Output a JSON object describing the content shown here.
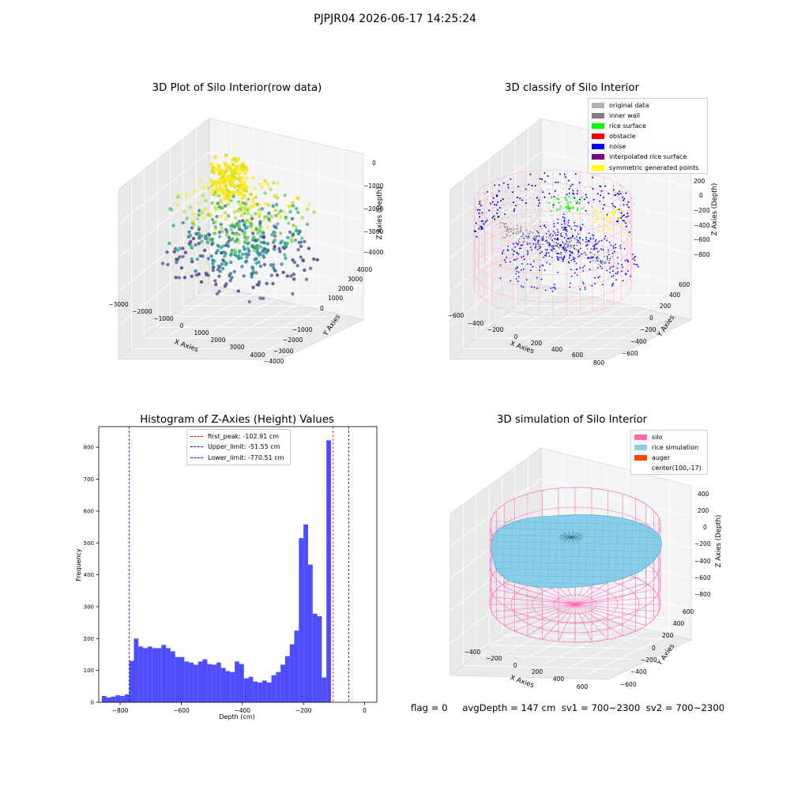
{
  "suptitle": "PJPJR04 2026-06-17 14:25:24",
  "footer": {
    "flag": "flag = 0",
    "avg": "avgDepth = 147 cm",
    "sv1": "sv1 = 700~2300",
    "sv2": "sv2 = 700~2300"
  },
  "chart_data": [
    {
      "type": "scatter",
      "projection": "3d",
      "title": "3D Plot of Silo Interior(row data)",
      "xlabel": "X Axies",
      "ylabel": "Y Axies",
      "zlabel": "Z Axies (Depth)",
      "xticks": [
        "−3000",
        "−2000",
        "−1000",
        "0",
        "1000",
        "2000",
        "3000",
        "4000"
      ],
      "yticks": [
        "−4000",
        "−3000",
        "−2000",
        "−1000",
        "0",
        "1000",
        "2000",
        "3000",
        "4000"
      ],
      "zticks": [
        "0",
        "−1000",
        "−2000",
        "−3000",
        "−4000"
      ],
      "xlim": [
        -3000,
        4000
      ],
      "ylim": [
        -4000,
        4000
      ],
      "zlim": [
        -4000,
        0
      ],
      "colormap": "viridis (colored by depth)",
      "grid": true
    },
    {
      "type": "scatter",
      "projection": "3d",
      "title": "3D classify of Silo Interior",
      "xlabel": "X Axies",
      "ylabel": "Y Axies",
      "zlabel": "Z Axies (Depth)",
      "xticks": [
        "−600",
        "−400",
        "−200",
        "0",
        "200",
        "400",
        "600",
        "800"
      ],
      "yticks": [
        "−600",
        "−400",
        "−200",
        "0",
        "200",
        "400",
        "600"
      ],
      "zticks": [
        "200",
        "0",
        "−200",
        "−400",
        "−600",
        "−800"
      ],
      "legend": [
        {
          "label": "original data",
          "color": "#b0b0b0"
        },
        {
          "label": "inner wall",
          "color": "#808080"
        },
        {
          "label": "rice surface",
          "color": "#00ff00"
        },
        {
          "label": "obstacle",
          "color": "#ff0000"
        },
        {
          "label": "noise",
          "color": "#0000ff"
        },
        {
          "label": "interpolated rice surface",
          "color": "#800080"
        },
        {
          "label": "symmetric generated points",
          "color": "#ffff00"
        }
      ],
      "legend_loc": "upper right",
      "grid": true
    },
    {
      "type": "bar",
      "subtype": "histogram",
      "title": "Histogram of Z-Axies (Height) Values",
      "xlabel": "Depth (cm)",
      "ylabel": "Frequency",
      "bar_color": "#4d4dff",
      "bin_width": 15,
      "bin_start": -860,
      "values": [
        20,
        15,
        18,
        22,
        20,
        25,
        130,
        200,
        175,
        170,
        175,
        170,
        170,
        180,
        170,
        160,
        142,
        142,
        128,
        125,
        118,
        128,
        135,
        120,
        118,
        125,
        108,
        98,
        95,
        128,
        120,
        75,
        80,
        65,
        62,
        68,
        62,
        85,
        95,
        118,
        145,
        182,
        225,
        515,
        558,
        432,
        278,
        270,
        78,
        822
      ],
      "xlim": [
        -870,
        40
      ],
      "ylim": [
        0,
        865
      ],
      "xticks": [
        -800,
        -600,
        -400,
        -200,
        0
      ],
      "yticks": [
        0,
        100,
        200,
        300,
        400,
        500,
        600,
        700,
        800
      ],
      "vlines": [
        {
          "label": "first_peak: -102.91 cm",
          "x": -102.91,
          "color": "#ff0000"
        },
        {
          "label": "Upper_limit: -51.55 cm",
          "x": -51.55,
          "color": "#0000a0"
        },
        {
          "label": "Lower_limit: -770.51 cm",
          "x": -770.51,
          "color": "#0000ff"
        }
      ],
      "legend_loc": "upper center"
    },
    {
      "type": "surface",
      "projection": "3d",
      "title": "3D simulation of Silo Interior",
      "xlabel": "X Axies",
      "ylabel": "Y Axies",
      "zlabel": "Z Axies (Depth)",
      "xticks": [
        "−400",
        "−200",
        "0",
        "200",
        "400",
        "600"
      ],
      "yticks": [
        "−600",
        "−400",
        "−200",
        "0",
        "200",
        "400",
        "600"
      ],
      "zticks": [
        "400",
        "200",
        "0",
        "−200",
        "−400",
        "−600",
        "−800"
      ],
      "legend": [
        {
          "label": "silo",
          "color": "#ff69b4"
        },
        {
          "label": "rice simulation",
          "color": "#87ceeb"
        },
        {
          "label": "auger",
          "color": "#ff4500"
        },
        {
          "label": "center(100,-17)",
          "color": ""
        }
      ],
      "legend_loc": "upper right",
      "grid": true
    }
  ]
}
